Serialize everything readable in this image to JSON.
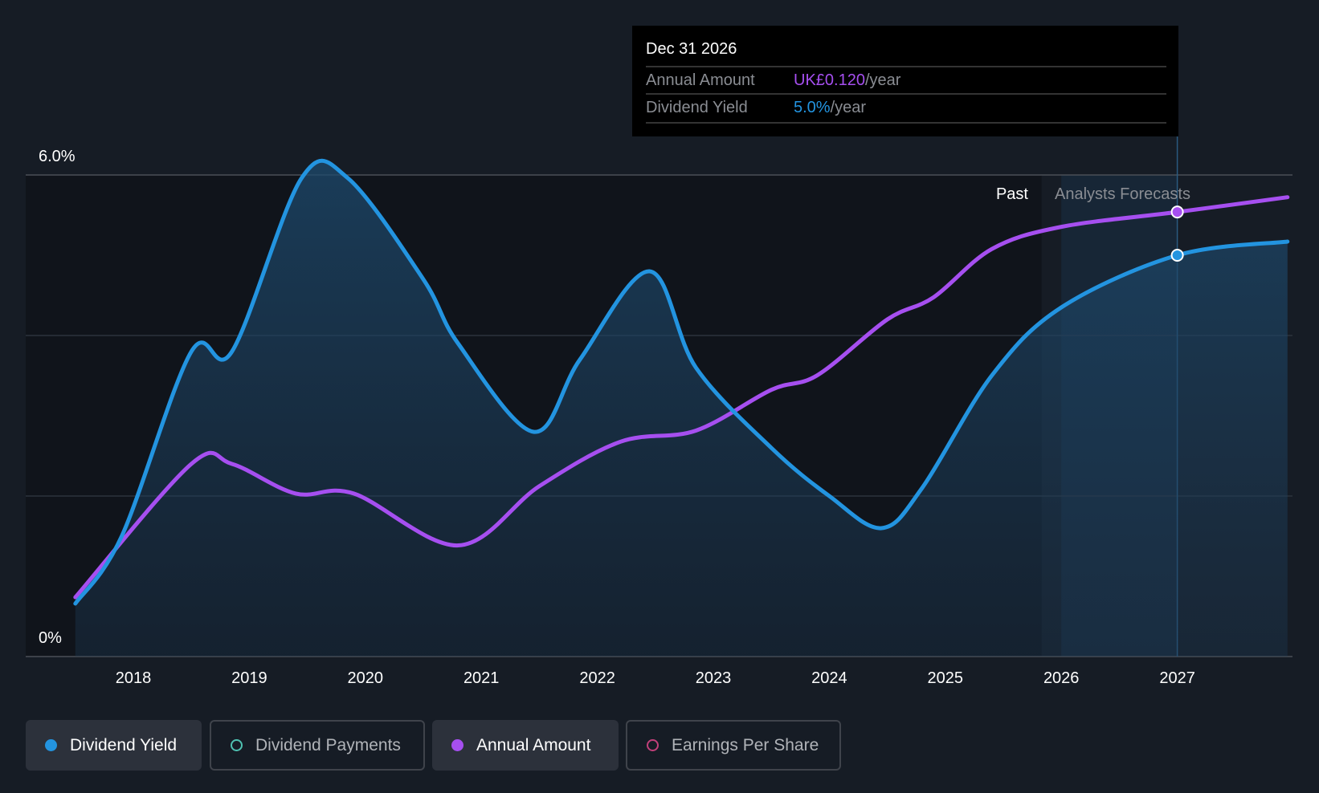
{
  "tooltip": {
    "date": "Dec 31 2026",
    "rows": [
      {
        "label": "Annual Amount",
        "value": "UK£0.120",
        "unit": "/year",
        "color": "#a64ff0"
      },
      {
        "label": "Dividend Yield",
        "value": "5.0%",
        "unit": "/year",
        "color": "#2394e0"
      }
    ]
  },
  "legend": [
    {
      "label": "Dividend Yield",
      "color": "#2394e0",
      "active": true
    },
    {
      "label": "Dividend Payments",
      "color": "#4fc1b1",
      "active": false
    },
    {
      "label": "Annual Amount",
      "color": "#a64ff0",
      "active": true
    },
    {
      "label": "Earnings Per Share",
      "color": "#c2407a",
      "active": false
    }
  ],
  "chart_data": {
    "type": "line",
    "y_tick_labels": [
      "6.0%",
      "0%"
    ],
    "ylim": [
      0,
      6
    ],
    "amount_axis_max": 0.13,
    "x_tick_labels": [
      "2018",
      "2019",
      "2020",
      "2021",
      "2022",
      "2023",
      "2024",
      "2025",
      "2026",
      "2027"
    ],
    "xlim": [
      2017.05,
      2027.95
    ],
    "past_label": "Past",
    "forecast_label": "Analysts Forecasts",
    "past_end": 2025.83,
    "highlight_x": 2027.0,
    "series": [
      {
        "name": "Dividend Yield",
        "unit": "%",
        "color": "#2394e0",
        "x": [
          2017.5,
          2017.9,
          2018.5,
          2018.85,
          2019.45,
          2019.85,
          2020.5,
          2020.8,
          2021.45,
          2021.85,
          2022.45,
          2022.85,
          2023.5,
          2024.0,
          2024.45,
          2024.8,
          2025.4,
          2026.0,
          2027.0,
          2027.95
        ],
        "values": [
          0.66,
          1.5,
          3.8,
          3.8,
          5.96,
          5.96,
          4.7,
          3.9,
          2.8,
          3.7,
          4.8,
          3.6,
          2.6,
          2.0,
          1.6,
          2.1,
          3.5,
          4.35,
          5.0,
          5.17
        ]
      },
      {
        "name": "Annual Amount",
        "unit": "UK£",
        "color": "#a64ff0",
        "x": [
          2017.5,
          2018.5,
          2018.85,
          2019.4,
          2019.9,
          2020.8,
          2021.5,
          2022.2,
          2022.85,
          2023.5,
          2023.9,
          2024.5,
          2024.9,
          2025.4,
          2026.0,
          2027.0,
          2027.95
        ],
        "values": [
          0.016,
          0.052,
          0.052,
          0.044,
          0.044,
          0.03,
          0.046,
          0.058,
          0.061,
          0.072,
          0.076,
          0.091,
          0.097,
          0.11,
          0.116,
          0.12,
          0.124
        ]
      }
    ]
  }
}
